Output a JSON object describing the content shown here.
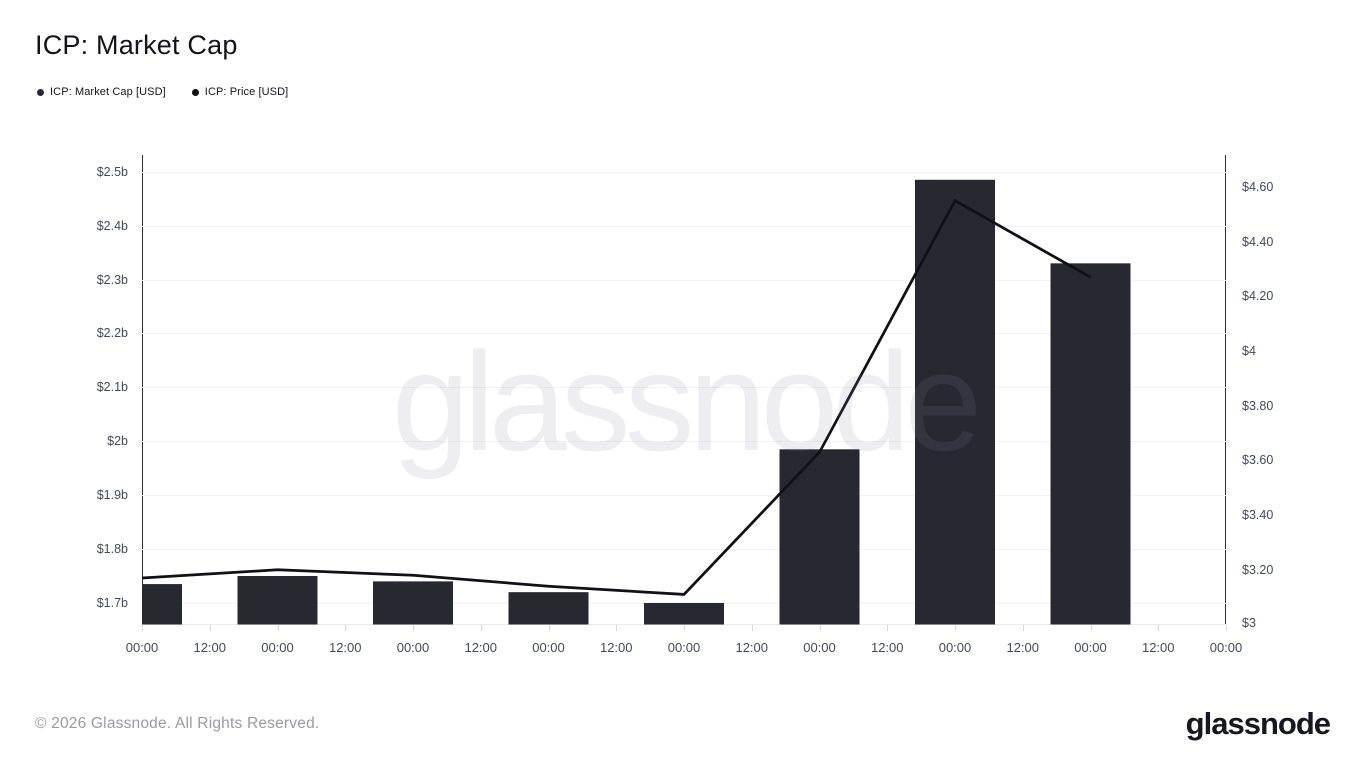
{
  "header": {
    "title": "ICP: Market Cap"
  },
  "watermark": "glassnode",
  "footer": {
    "copyright": "© 2026 Glassnode. All Rights Reserved.",
    "brand": "glassnode"
  },
  "chart_data": {
    "type": "bar",
    "title": "ICP: Market Cap",
    "legend_position": "top-left",
    "grid": "horizontal",
    "x_axis": {
      "tick_labels": [
        "00:00",
        "12:00",
        "00:00",
        "12:00",
        "00:00",
        "12:00",
        "00:00",
        "12:00",
        "00:00",
        "12:00",
        "00:00",
        "12:00",
        "00:00",
        "12:00",
        "00:00",
        "12:00",
        "00:00"
      ],
      "tick_interval_hours": 12
    },
    "left_axis": {
      "title": "ICP: Market Cap [USD]",
      "unit": "USD billions",
      "tick_labels": [
        "$2.5b",
        "$2.4b",
        "$2.3b",
        "$2.2b",
        "$2.1b",
        "$2b",
        "$1.9b",
        "$1.8b",
        "$1.7b"
      ],
      "tick_values": [
        2.5,
        2.4,
        2.3,
        2.2,
        2.1,
        2.0,
        1.9,
        1.8,
        1.7
      ],
      "range": [
        1.66,
        2.531
      ]
    },
    "right_axis": {
      "title": "ICP: Price [USD]",
      "unit": "USD",
      "tick_labels": [
        "$4.60",
        "$4.40",
        "$4.20",
        "$4",
        "$3.80",
        "$3.60",
        "$3.40",
        "$3.20",
        "$3"
      ],
      "tick_values": [
        4.6,
        4.4,
        4.2,
        4.0,
        3.8,
        3.6,
        3.4,
        3.2,
        3.0
      ],
      "range": [
        3.0,
        4.717
      ]
    },
    "series": [
      {
        "name": "ICP: Market Cap [USD]",
        "type": "bar",
        "axis": "left",
        "color": "#282831",
        "x_tick_indices": [
          0,
          2,
          4,
          6,
          8,
          10,
          12,
          14
        ],
        "values": [
          1.735,
          1.75,
          1.74,
          1.72,
          1.7,
          1.985,
          2.485,
          2.33
        ]
      },
      {
        "name": "ICP: Price [USD]",
        "type": "line",
        "axis": "right",
        "color": "#101016",
        "x_tick_indices": [
          0,
          2,
          4,
          6,
          8,
          10,
          12,
          14
        ],
        "values": [
          3.17,
          3.2,
          3.18,
          3.14,
          3.11,
          3.63,
          4.55,
          4.27
        ]
      }
    ]
  }
}
